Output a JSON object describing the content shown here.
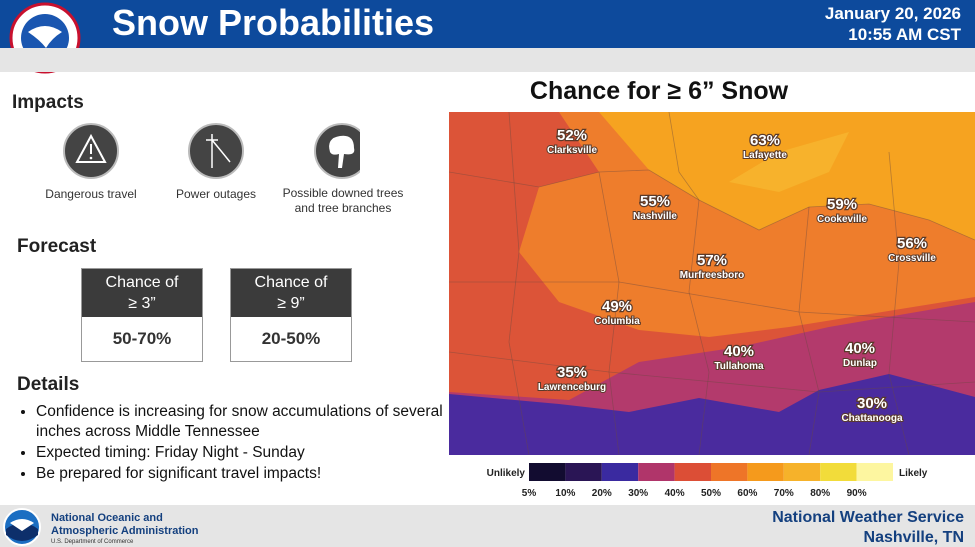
{
  "header": {
    "title": "Snow Probabilities",
    "date": "January 20, 2026",
    "time": "10:55 AM CST"
  },
  "impacts": {
    "heading": "Impacts",
    "items": [
      "Dangerous travel",
      "Power outages",
      "Possible downed trees and tree branches"
    ]
  },
  "forecast": {
    "heading": "Forecast",
    "boxes": [
      {
        "line1": "Chance of",
        "line2": "≥ 3”",
        "value": "50-70%"
      },
      {
        "line1": "Chance of",
        "line2": "≥ 9”",
        "value": "20-50%"
      }
    ]
  },
  "details": {
    "heading": "Details",
    "items": [
      "Confidence is increasing for snow accumulations of several inches across Middle Tennessee",
      "Expected timing: Friday Night - Sunday",
      "Be prepared for significant travel impacts!"
    ]
  },
  "map": {
    "title": "Chance for ≥ 6” Snow",
    "cities": [
      {
        "name": "Clarksville",
        "chance": "52%"
      },
      {
        "name": "Lafayette",
        "chance": "63%"
      },
      {
        "name": "Nashville",
        "chance": "55%"
      },
      {
        "name": "Cookeville",
        "chance": "59%"
      },
      {
        "name": "Crossville",
        "chance": "56%"
      },
      {
        "name": "Murfreesboro",
        "chance": "57%"
      },
      {
        "name": "Columbia",
        "chance": "49%"
      },
      {
        "name": "Tullahoma",
        "chance": "40%"
      },
      {
        "name": "Dunlap",
        "chance": "40%"
      },
      {
        "name": "Lawrenceburg",
        "chance": "35%"
      },
      {
        "name": "Chattanooga",
        "chance": "30%"
      }
    ]
  },
  "legend": {
    "low": "Unlikely",
    "high": "Likely",
    "ticks": [
      "5%",
      "10%",
      "20%",
      "30%",
      "40%",
      "50%",
      "60%",
      "70%",
      "80%",
      "90%"
    ]
  },
  "footer": {
    "agency1": "National Oceanic and",
    "agency2": "Atmospheric Administration",
    "department": "U.S. Department of Commerce",
    "office": "National Weather Service",
    "location": "Nashville, TN"
  }
}
